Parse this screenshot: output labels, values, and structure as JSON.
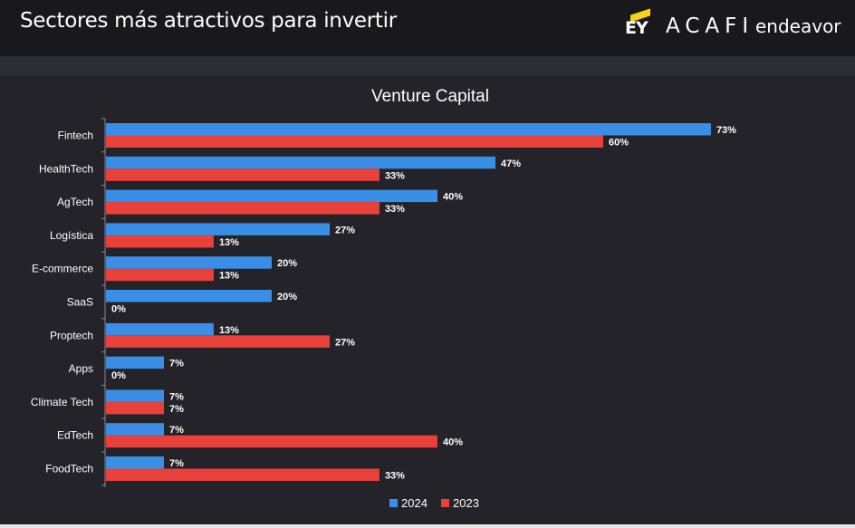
{
  "header": {
    "title": "Sectores más atractivos para invertir",
    "logos": {
      "ey": "EY",
      "acafi": "ACAFI",
      "endeavor": "endeavor"
    }
  },
  "chart_data": {
    "type": "bar",
    "orientation": "horizontal",
    "title": "Venture Capital",
    "categories": [
      "Fintech",
      "HealthTech",
      "AgTech",
      "Logística",
      "E-commerce",
      "SaaS",
      "Proptech",
      "Apps",
      "Climate Tech",
      "EdTech",
      "FoodTech"
    ],
    "series": [
      {
        "name": "2024",
        "color": "#3a8ee6",
        "values": [
          73,
          47,
          40,
          27,
          20,
          20,
          13,
          7,
          7,
          7,
          7
        ]
      },
      {
        "name": "2023",
        "color": "#e8403a",
        "values": [
          60,
          33,
          33,
          13,
          13,
          0,
          27,
          0,
          7,
          40,
          33
        ]
      }
    ],
    "value_format": "percent",
    "legend_position": "bottom-center",
    "grid": false
  }
}
